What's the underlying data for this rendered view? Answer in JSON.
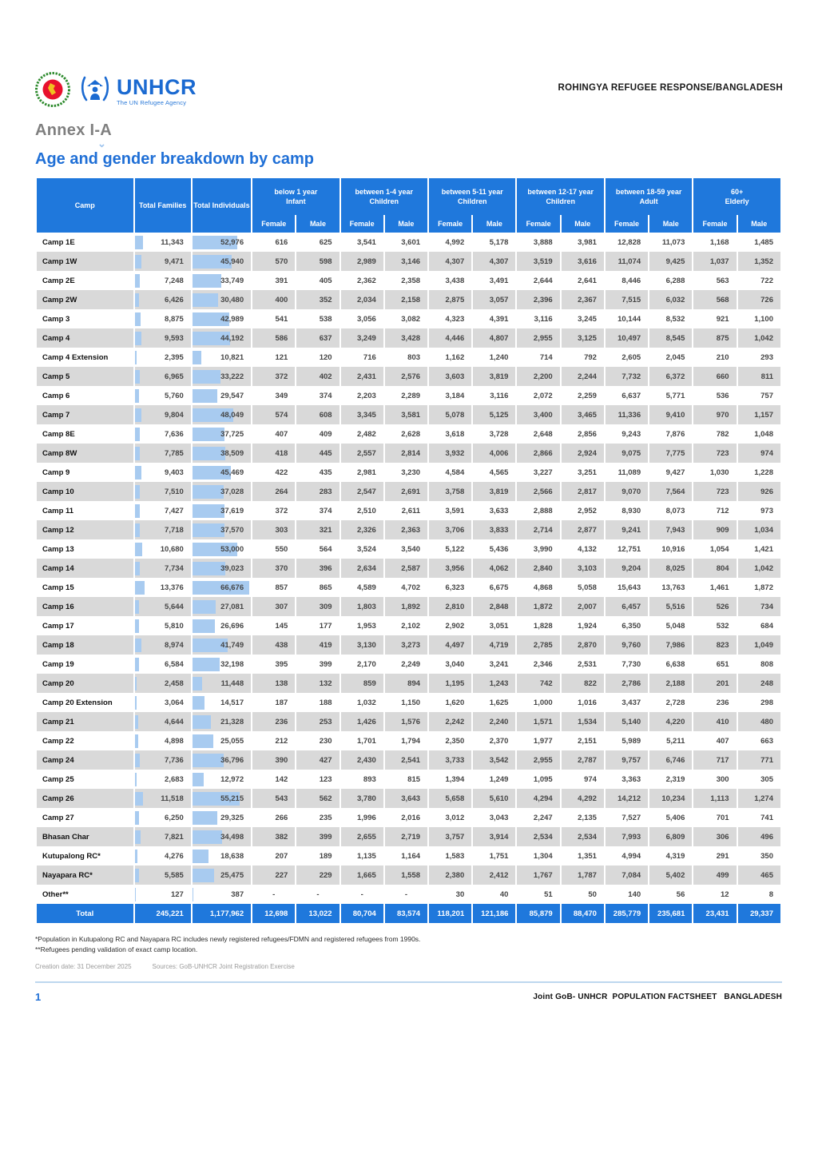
{
  "header": {
    "right_text": "ROHINGYA REFUGEE RESPONSE/BANGLADESH",
    "unhcr_wordmark": "UNHCR",
    "unhcr_tagline": "The UN Refugee Agency"
  },
  "annex_title": "Annex I-A",
  "page_title": "Age and gender breakdown by camp",
  "table": {
    "col_headers": {
      "camp": "Camp",
      "families": "Total Families",
      "individuals": "Total Individuals",
      "groups": [
        {
          "range": "below 1 year",
          "label": "Infant"
        },
        {
          "range": "between 1-4 year",
          "label": "Children"
        },
        {
          "range": "between 5-11 year",
          "label": "Children"
        },
        {
          "range": "between 12-17 year",
          "label": "Children"
        },
        {
          "range": "between 18-59 year",
          "label": "Adult"
        },
        {
          "range": "60+",
          "label": "Elderly"
        }
      ],
      "female": "Female",
      "male": "Male"
    },
    "rows": [
      {
        "camp": "Camp 1E",
        "values": [
          "11,343",
          "52,976",
          "616",
          "625",
          "3,541",
          "3,601",
          "4,992",
          "5,178",
          "3,888",
          "3,981",
          "12,828",
          "11,073",
          "1,168",
          "1,485"
        ]
      },
      {
        "camp": "Camp 1W",
        "values": [
          "9,471",
          "45,940",
          "570",
          "598",
          "2,989",
          "3,146",
          "4,307",
          "4,307",
          "3,519",
          "3,616",
          "11,074",
          "9,425",
          "1,037",
          "1,352"
        ]
      },
      {
        "camp": "Camp 2E",
        "values": [
          "7,248",
          "33,749",
          "391",
          "405",
          "2,362",
          "2,358",
          "3,438",
          "3,491",
          "2,644",
          "2,641",
          "8,446",
          "6,288",
          "563",
          "722"
        ]
      },
      {
        "camp": "Camp 2W",
        "values": [
          "6,426",
          "30,480",
          "400",
          "352",
          "2,034",
          "2,158",
          "2,875",
          "3,057",
          "2,396",
          "2,367",
          "7,515",
          "6,032",
          "568",
          "726"
        ]
      },
      {
        "camp": "Camp 3",
        "values": [
          "8,875",
          "42,989",
          "541",
          "538",
          "3,056",
          "3,082",
          "4,323",
          "4,391",
          "3,116",
          "3,245",
          "10,144",
          "8,532",
          "921",
          "1,100"
        ]
      },
      {
        "camp": "Camp 4",
        "values": [
          "9,593",
          "44,192",
          "586",
          "637",
          "3,249",
          "3,428",
          "4,446",
          "4,807",
          "2,955",
          "3,125",
          "10,497",
          "8,545",
          "875",
          "1,042"
        ]
      },
      {
        "camp": "Camp 4 Extension",
        "values": [
          "2,395",
          "10,821",
          "121",
          "120",
          "716",
          "803",
          "1,162",
          "1,240",
          "714",
          "792",
          "2,605",
          "2,045",
          "210",
          "293"
        ]
      },
      {
        "camp": "Camp 5",
        "values": [
          "6,965",
          "33,222",
          "372",
          "402",
          "2,431",
          "2,576",
          "3,603",
          "3,819",
          "2,200",
          "2,244",
          "7,732",
          "6,372",
          "660",
          "811"
        ]
      },
      {
        "camp": "Camp 6",
        "values": [
          "5,760",
          "29,547",
          "349",
          "374",
          "2,203",
          "2,289",
          "3,184",
          "3,116",
          "2,072",
          "2,259",
          "6,637",
          "5,771",
          "536",
          "757"
        ]
      },
      {
        "camp": "Camp 7",
        "values": [
          "9,804",
          "48,049",
          "574",
          "608",
          "3,345",
          "3,581",
          "5,078",
          "5,125",
          "3,400",
          "3,465",
          "11,336",
          "9,410",
          "970",
          "1,157"
        ]
      },
      {
        "camp": "Camp 8E",
        "values": [
          "7,636",
          "37,725",
          "407",
          "409",
          "2,482",
          "2,628",
          "3,618",
          "3,728",
          "2,648",
          "2,856",
          "9,243",
          "7,876",
          "782",
          "1,048"
        ]
      },
      {
        "camp": "Camp 8W",
        "values": [
          "7,785",
          "38,509",
          "418",
          "445",
          "2,557",
          "2,814",
          "3,932",
          "4,006",
          "2,866",
          "2,924",
          "9,075",
          "7,775",
          "723",
          "974"
        ]
      },
      {
        "camp": "Camp 9",
        "values": [
          "9,403",
          "45,469",
          "422",
          "435",
          "2,981",
          "3,230",
          "4,584",
          "4,565",
          "3,227",
          "3,251",
          "11,089",
          "9,427",
          "1,030",
          "1,228"
        ]
      },
      {
        "camp": "Camp 10",
        "values": [
          "7,510",
          "37,028",
          "264",
          "283",
          "2,547",
          "2,691",
          "3,758",
          "3,819",
          "2,566",
          "2,817",
          "9,070",
          "7,564",
          "723",
          "926"
        ]
      },
      {
        "camp": "Camp 11",
        "values": [
          "7,427",
          "37,619",
          "372",
          "374",
          "2,510",
          "2,611",
          "3,591",
          "3,633",
          "2,888",
          "2,952",
          "8,930",
          "8,073",
          "712",
          "973"
        ]
      },
      {
        "camp": "Camp 12",
        "values": [
          "7,718",
          "37,570",
          "303",
          "321",
          "2,326",
          "2,363",
          "3,706",
          "3,833",
          "2,714",
          "2,877",
          "9,241",
          "7,943",
          "909",
          "1,034"
        ]
      },
      {
        "camp": "Camp 13",
        "values": [
          "10,680",
          "53,000",
          "550",
          "564",
          "3,524",
          "3,540",
          "5,122",
          "5,436",
          "3,990",
          "4,132",
          "12,751",
          "10,916",
          "1,054",
          "1,421"
        ]
      },
      {
        "camp": "Camp 14",
        "values": [
          "7,734",
          "39,023",
          "370",
          "396",
          "2,634",
          "2,587",
          "3,956",
          "4,062",
          "2,840",
          "3,103",
          "9,204",
          "8,025",
          "804",
          "1,042"
        ]
      },
      {
        "camp": "Camp 15",
        "values": [
          "13,376",
          "66,676",
          "857",
          "865",
          "4,589",
          "4,702",
          "6,323",
          "6,675",
          "4,868",
          "5,058",
          "15,643",
          "13,763",
          "1,461",
          "1,872"
        ]
      },
      {
        "camp": "Camp 16",
        "values": [
          "5,644",
          "27,081",
          "307",
          "309",
          "1,803",
          "1,892",
          "2,810",
          "2,848",
          "1,872",
          "2,007",
          "6,457",
          "5,516",
          "526",
          "734"
        ]
      },
      {
        "camp": "Camp 17",
        "values": [
          "5,810",
          "26,696",
          "145",
          "177",
          "1,953",
          "2,102",
          "2,902",
          "3,051",
          "1,828",
          "1,924",
          "6,350",
          "5,048",
          "532",
          "684"
        ]
      },
      {
        "camp": "Camp 18",
        "values": [
          "8,974",
          "41,749",
          "438",
          "419",
          "3,130",
          "3,273",
          "4,497",
          "4,719",
          "2,785",
          "2,870",
          "9,760",
          "7,986",
          "823",
          "1,049"
        ]
      },
      {
        "camp": "Camp 19",
        "values": [
          "6,584",
          "32,198",
          "395",
          "399",
          "2,170",
          "2,249",
          "3,040",
          "3,241",
          "2,346",
          "2,531",
          "7,730",
          "6,638",
          "651",
          "808"
        ]
      },
      {
        "camp": "Camp 20",
        "values": [
          "2,458",
          "11,448",
          "138",
          "132",
          "859",
          "894",
          "1,195",
          "1,243",
          "742",
          "822",
          "2,786",
          "2,188",
          "201",
          "248"
        ]
      },
      {
        "camp": "Camp 20 Extension",
        "values": [
          "3,064",
          "14,517",
          "187",
          "188",
          "1,032",
          "1,150",
          "1,620",
          "1,625",
          "1,000",
          "1,016",
          "3,437",
          "2,728",
          "236",
          "298"
        ]
      },
      {
        "camp": "Camp 21",
        "values": [
          "4,644",
          "21,328",
          "236",
          "253",
          "1,426",
          "1,576",
          "2,242",
          "2,240",
          "1,571",
          "1,534",
          "5,140",
          "4,220",
          "410",
          "480"
        ]
      },
      {
        "camp": "Camp 22",
        "values": [
          "4,898",
          "25,055",
          "212",
          "230",
          "1,701",
          "1,794",
          "2,350",
          "2,370",
          "1,977",
          "2,151",
          "5,989",
          "5,211",
          "407",
          "663"
        ]
      },
      {
        "camp": "Camp 24",
        "values": [
          "7,736",
          "36,796",
          "390",
          "427",
          "2,430",
          "2,541",
          "3,733",
          "3,542",
          "2,955",
          "2,787",
          "9,757",
          "6,746",
          "717",
          "771"
        ]
      },
      {
        "camp": "Camp 25",
        "values": [
          "2,683",
          "12,972",
          "142",
          "123",
          "893",
          "815",
          "1,394",
          "1,249",
          "1,095",
          "974",
          "3,363",
          "2,319",
          "300",
          "305"
        ]
      },
      {
        "camp": "Camp 26",
        "values": [
          "11,518",
          "55,215",
          "543",
          "562",
          "3,780",
          "3,643",
          "5,658",
          "5,610",
          "4,294",
          "4,292",
          "14,212",
          "10,234",
          "1,113",
          "1,274"
        ]
      },
      {
        "camp": "Camp 27",
        "values": [
          "6,250",
          "29,325",
          "266",
          "235",
          "1,996",
          "2,016",
          "3,012",
          "3,043",
          "2,247",
          "2,135",
          "7,527",
          "5,406",
          "701",
          "741"
        ]
      },
      {
        "camp": "Bhasan Char",
        "values": [
          "7,821",
          "34,498",
          "382",
          "399",
          "2,655",
          "2,719",
          "3,757",
          "3,914",
          "2,534",
          "2,534",
          "7,993",
          "6,809",
          "306",
          "496"
        ]
      },
      {
        "camp": "Kutupalong RC*",
        "values": [
          "4,276",
          "18,638",
          "207",
          "189",
          "1,135",
          "1,164",
          "1,583",
          "1,751",
          "1,304",
          "1,351",
          "4,994",
          "4,319",
          "291",
          "350"
        ]
      },
      {
        "camp": "Nayapara RC*",
        "values": [
          "5,585",
          "25,475",
          "227",
          "229",
          "1,665",
          "1,558",
          "2,380",
          "2,412",
          "1,767",
          "1,787",
          "7,084",
          "5,402",
          "499",
          "465"
        ]
      },
      {
        "camp": "Other**",
        "values": [
          "127",
          "387",
          "-",
          "-",
          "-",
          "-",
          "30",
          "40",
          "51",
          "50",
          "140",
          "56",
          "12",
          "8"
        ]
      }
    ],
    "total": {
      "label": "Total",
      "values": [
        "245,221",
        "1,177,962",
        "12,698",
        "13,022",
        "80,704",
        "83,574",
        "118,201",
        "121,186",
        "85,879",
        "88,470",
        "285,779",
        "235,681",
        "23,431",
        "29,337"
      ]
    }
  },
  "footnotes": [
    "*Population in Kutupalong RC and Nayapara RC includes newly registered refugees/FDMN and registered refugees from 1990s.",
    "**Refugees pending validation of exact camp location."
  ],
  "meta": {
    "creation": "Creation date: 31 December 2025",
    "sources": "Sources: GoB-UNHCR Joint Registration Exercise"
  },
  "footer": {
    "page_number": "1",
    "right_text": "Joint GoB- UNHCR  POPULATION FACTSHEET   BANGLADESH"
  },
  "colors": {
    "primary_blue": "#1f78dc",
    "heading_blue": "#1f6fd6",
    "bar_light_blue": "#a8cbf0",
    "stripe_gray": "#d9d9d9",
    "unhcr_blue": "#1b6ad1",
    "divider_blue": "#bdd7ee",
    "emblem_green": "#2e8b2e",
    "emblem_red": "#e8112d",
    "emblem_gold": "#f0c020"
  }
}
